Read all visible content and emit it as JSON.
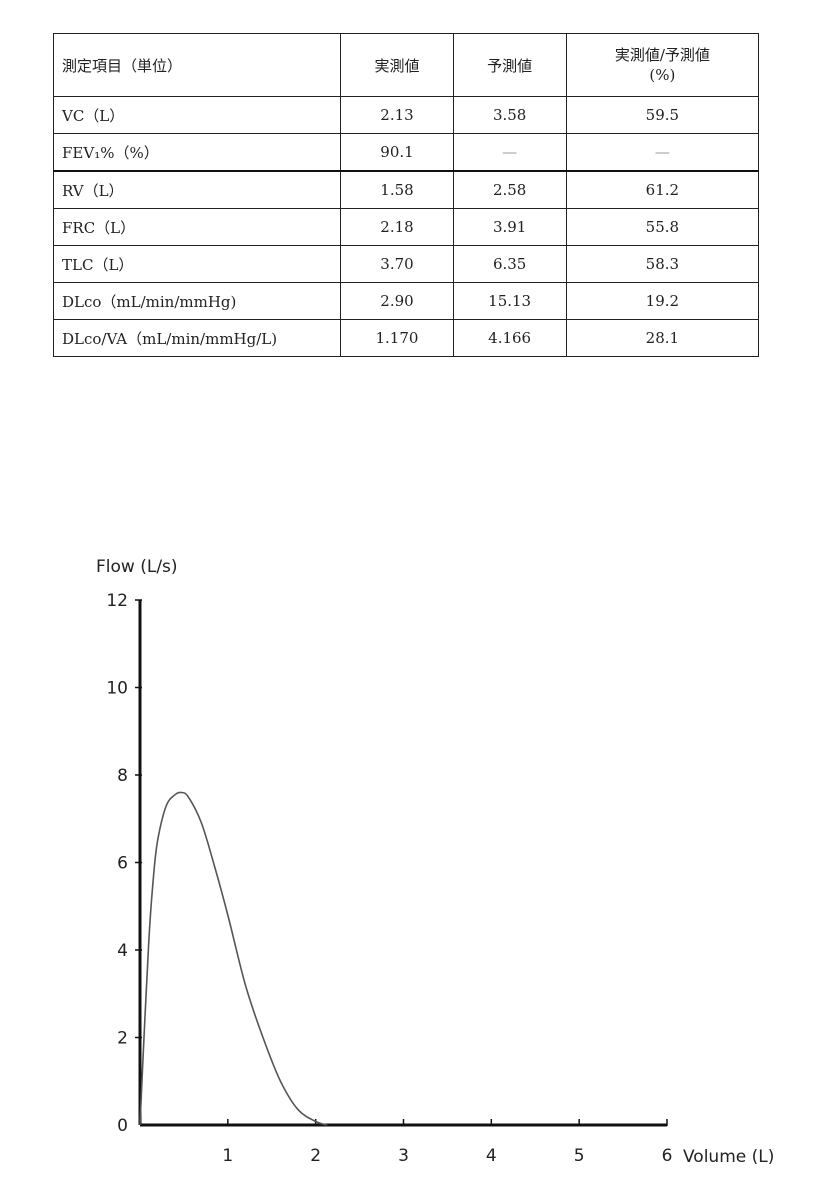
{
  "table": {
    "headers": [
      "測定項目（単位）",
      "実測値",
      "予測値",
      "実測値/予測値",
      "(%)"
    ],
    "rows": [
      {
        "item": "VC（L）",
        "measured": "2.13",
        "predicted": "3.58",
        "ratio": "59.5"
      },
      {
        "item": "FEV₁%（%）",
        "measured": "90.1",
        "predicted": "—",
        "ratio": "—"
      },
      {
        "item": "RV（L）",
        "measured": "1.58",
        "predicted": "2.58",
        "ratio": "61.2"
      },
      {
        "item": "FRC（L）",
        "measured": "2.18",
        "predicted": "3.91",
        "ratio": "55.8"
      },
      {
        "item": "TLC（L）",
        "measured": "3.70",
        "predicted": "6.35",
        "ratio": "58.3"
      },
      {
        "item": "DLco（mL/min/mmHg)",
        "measured": "2.90",
        "predicted": "15.13",
        "ratio": "19.2"
      },
      {
        "item": "DLco/VA（mL/min/mmHg/L)",
        "measured": "1.170",
        "predicted": "4.166",
        "ratio": "28.1"
      }
    ]
  },
  "chart_data": {
    "type": "line",
    "title": "",
    "xlabel": "Volume (L)",
    "ylabel": "Flow (L/s)",
    "xlim": [
      0,
      6
    ],
    "ylim": [
      0,
      12
    ],
    "x_ticks": [
      "1",
      "2",
      "3",
      "4",
      "5",
      "6"
    ],
    "y_ticks": [
      "0",
      "2",
      "4",
      "6",
      "8",
      "10",
      "12"
    ],
    "grid": false,
    "series": [
      {
        "color": "#555555",
        "x": [
          0,
          0.05,
          0.1,
          0.15,
          0.2,
          0.3,
          0.4,
          0.47,
          0.55,
          0.7,
          0.85,
          1.0,
          1.2,
          1.4,
          1.6,
          1.8,
          2.0,
          2.13
        ],
        "y": [
          0,
          2.2,
          4.2,
          5.6,
          6.5,
          7.3,
          7.55,
          7.6,
          7.5,
          6.9,
          5.9,
          4.8,
          3.2,
          2.0,
          1.0,
          0.35,
          0.08,
          0
        ]
      }
    ]
  }
}
